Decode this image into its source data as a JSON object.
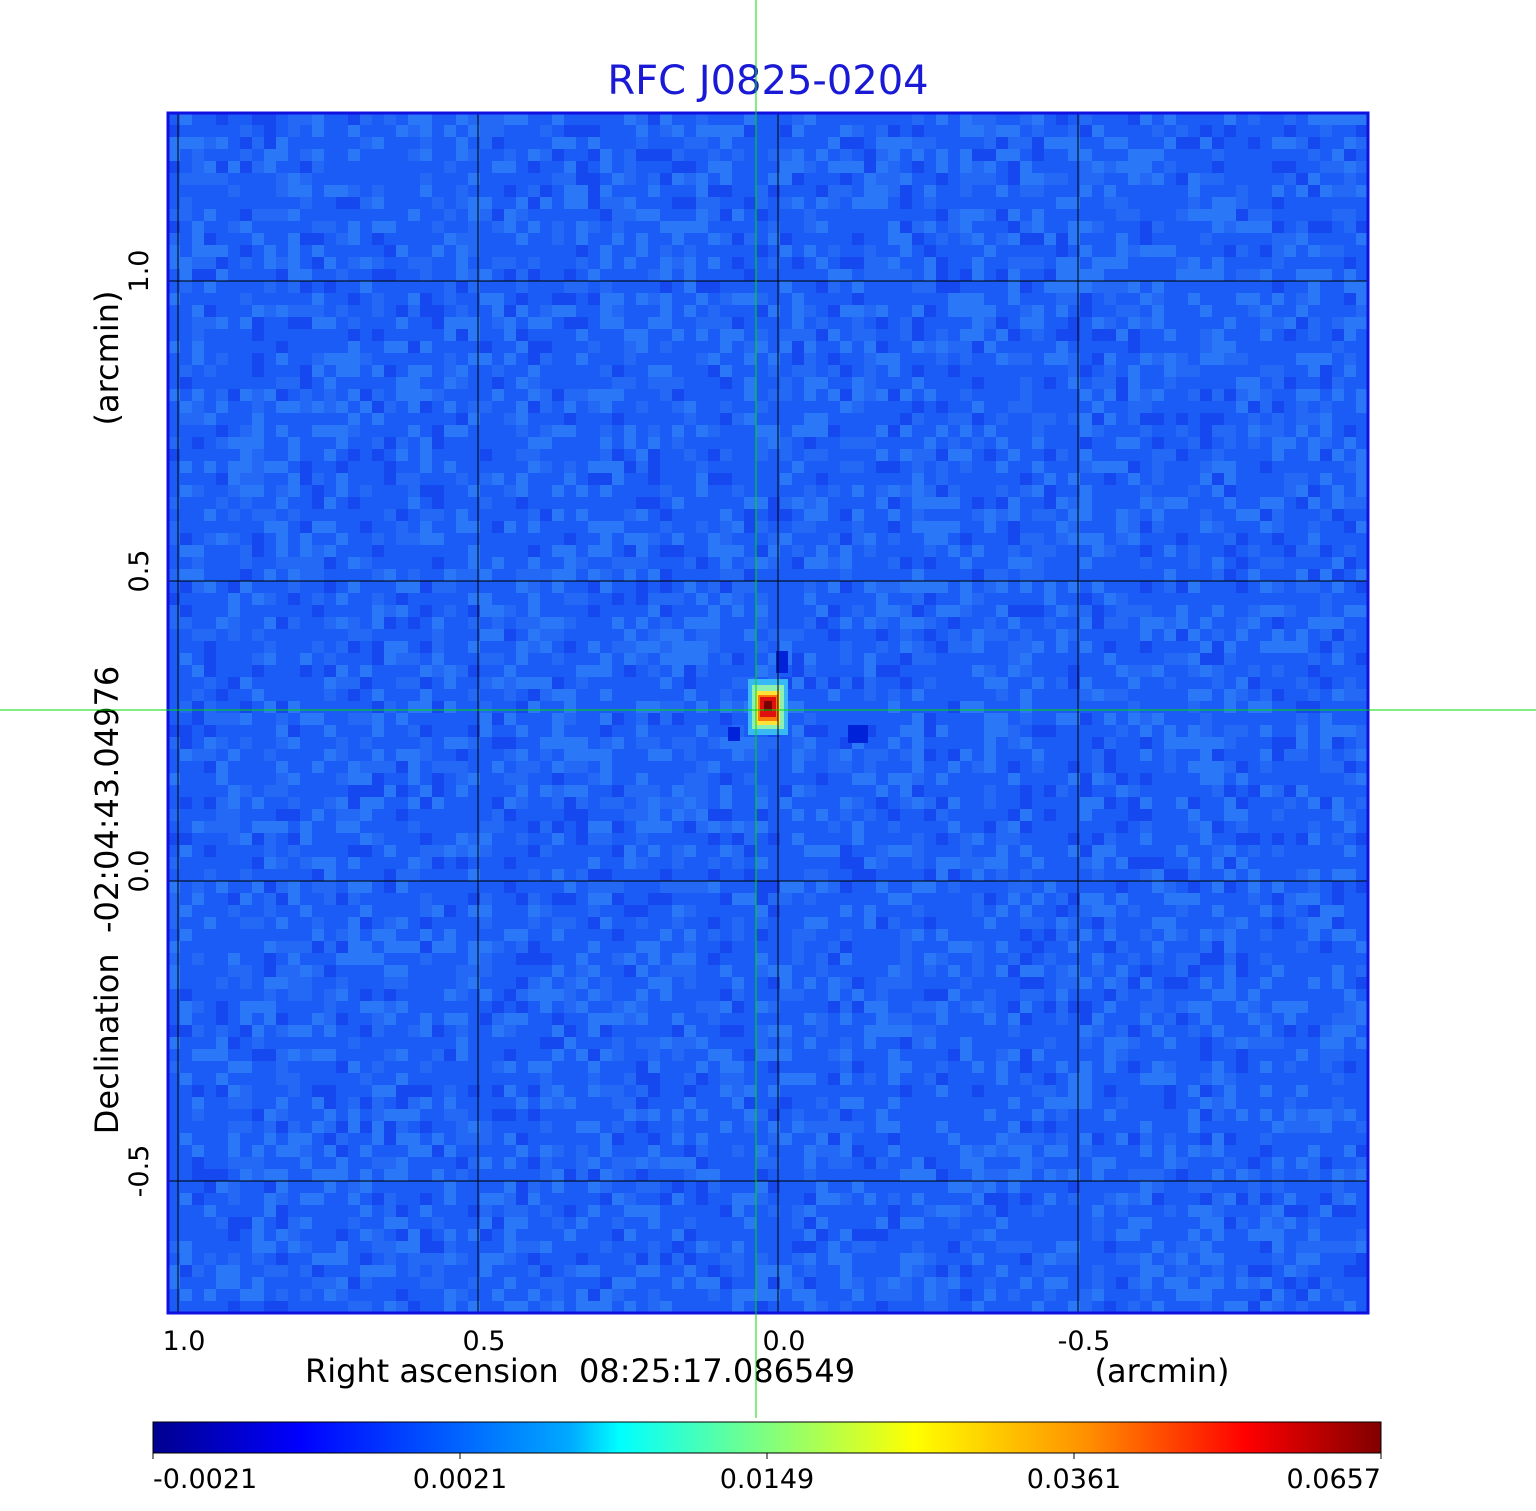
{
  "chart_data": {
    "type": "heatmap",
    "title": "RFC J0825-0204",
    "xlabel": "Right ascension  08:25:17.086549",
    "xunit": "(arcmin)",
    "ylabel": "Declination  -02:04:43.04976",
    "yunit": "(arcmin)",
    "x_axis": {
      "reversed": true,
      "range": [
        1.0,
        -1.0
      ],
      "ticks": [
        1.0,
        0.5,
        0.0,
        -0.5
      ],
      "tick_labels": [
        "1.0",
        "0.5",
        "0.0",
        "-0.5"
      ]
    },
    "y_axis": {
      "range": [
        -0.72,
        1.28
      ],
      "ticks": [
        -0.5,
        0.0,
        0.5,
        1.0
      ],
      "tick_labels": [
        "-0.5",
        "0.0",
        "0.5",
        "1.0"
      ]
    },
    "grid": true,
    "crosshair": {
      "x": 0.02,
      "y": 0.285,
      "color": "#00dd00"
    },
    "peak": {
      "x": 0.0,
      "y": 0.29
    },
    "colormap": "jet",
    "colorbar": {
      "orientation": "horizontal",
      "placement": "bottom",
      "tick_labels": [
        "-0.0021",
        "0.0021",
        "0.0149",
        "0.0361",
        "0.0657"
      ]
    },
    "colors": {
      "title": "#1a1ad6",
      "frame": "#1010e0",
      "grid": "#000000",
      "crosshair": "#00dd00"
    }
  }
}
